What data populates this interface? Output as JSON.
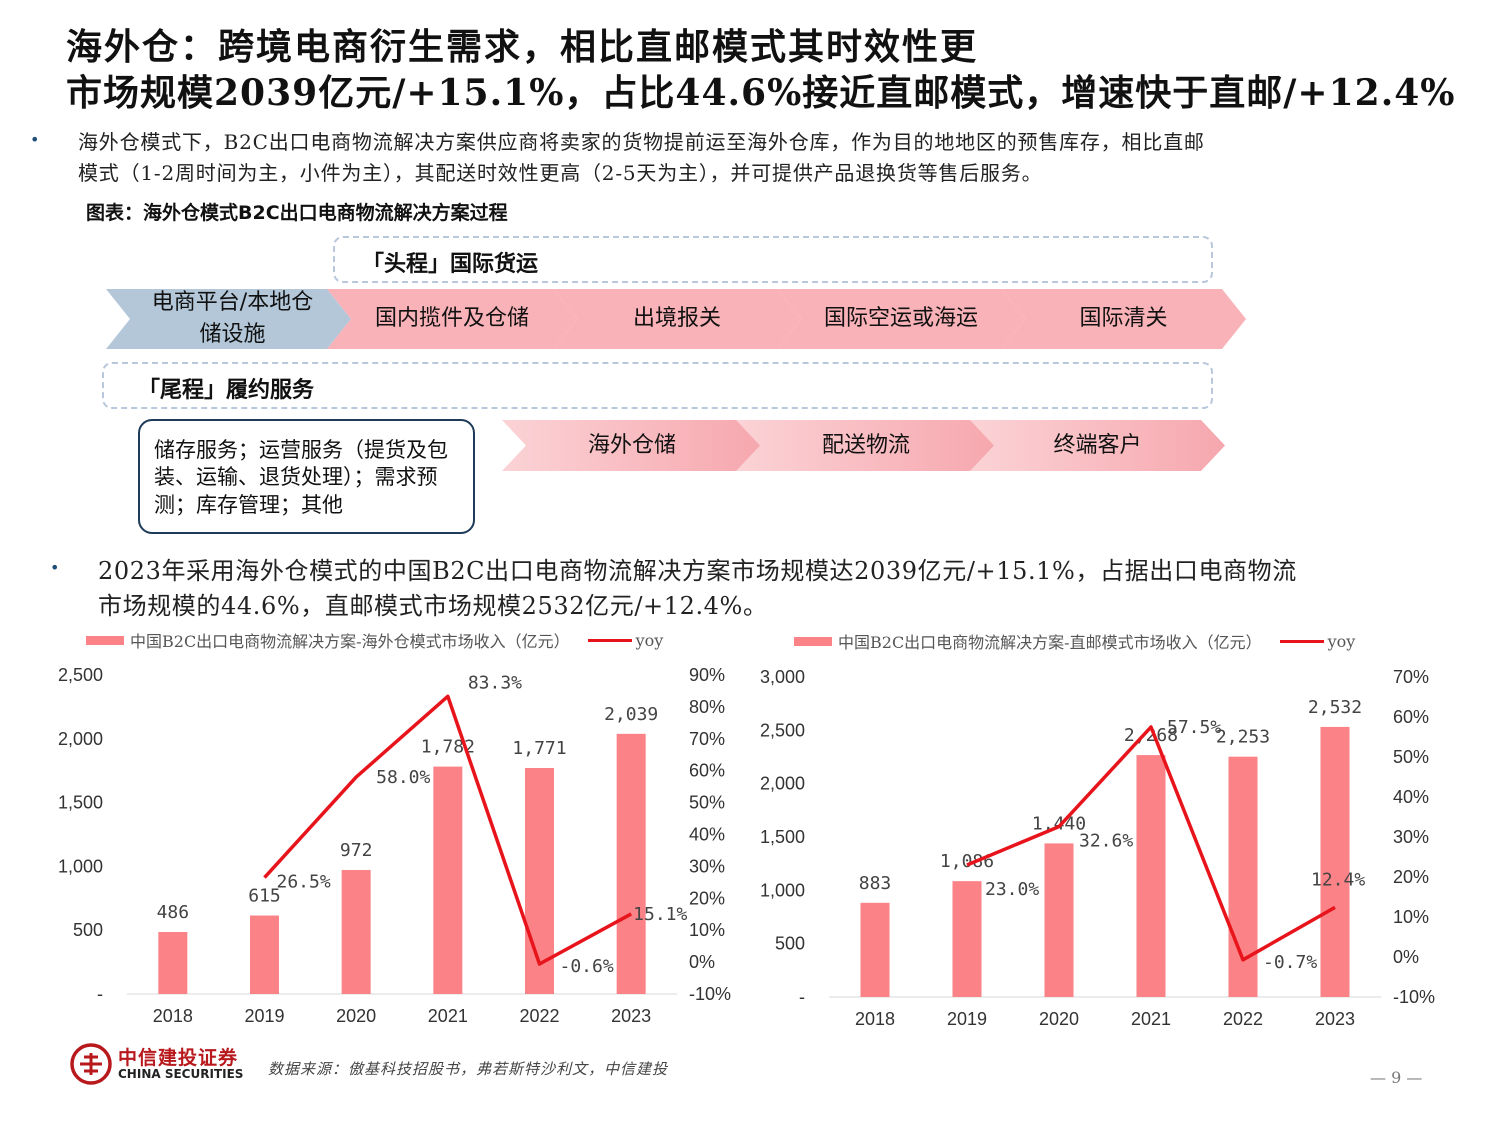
{
  "header": {
    "title_line1": "海外仓：跨境电商衍生需求，相比直邮模式其时效性更",
    "title_line2": "市场规模2039亿元/+15.1%，占比44.6%接近直邮模式，增速快于直邮/+12.4%"
  },
  "intro": {
    "line1": "海外仓模式下，B2C出口电商物流解决方案供应商将卖家的货物提前运至海外仓库，作为目的地地区的预售库存，相比直邮",
    "line2": "模式（1-2周时间为主，小件为主），其配送时效性更高（2-5天为主），并可提供产品退换货等售后服务。"
  },
  "figure": {
    "caption": "图表：海外仓模式B2C出口电商物流解决方案过程",
    "head_label": "「头程」国际货运",
    "tail_label": "「尾程」履约服务",
    "first_step_line1": "电商平台/本地仓",
    "first_step_line2": "储设施",
    "head_steps": [
      "国内揽件及仓储",
      "出境报关",
      "国际空运或海运",
      "国际清关"
    ],
    "tail_steps": [
      "海外仓储",
      "配送物流",
      "终端客户"
    ],
    "services": [
      "储存服务；运营服务（提货及包",
      "装、运输、退货处理）；需求预",
      "测；库存管理；其他"
    ]
  },
  "summary": {
    "line1": "2023年采用海外仓模式的中国B2C出口电商物流解决方案市场规模达2039亿元/+15.1%，占据出口电商物流",
    "line2": "市场规模的44.6%，直邮模式市场规模2532亿元/+12.4%。"
  },
  "colors": {
    "bar": "#fb8286",
    "line": "#e8141c",
    "brand": "#b8191c",
    "chevron_pink": "#f9b2b8",
    "chevron_blue": "#b3c7d9"
  },
  "chart_data": [
    {
      "type": "bar",
      "bar_series_name": "中国B2C出口电商物流解决方案-海外仓模式市场收入（亿元）",
      "line_series_name": "yoy",
      "categories": [
        "2018",
        "2019",
        "2020",
        "2021",
        "2022",
        "2023"
      ],
      "values": [
        486,
        615,
        972,
        1782,
        1771,
        2039
      ],
      "value_labels": [
        "486",
        "615",
        "972",
        "1,782",
        "1,771",
        "2,039"
      ],
      "yoy": [
        null,
        26.5,
        58.0,
        83.3,
        -0.6,
        15.1
      ],
      "yoy_labels": [
        "",
        "26.5%",
        "58.0%",
        "83.3%",
        "-0.6%",
        "15.1%"
      ],
      "ylim": [
        0,
        2500
      ],
      "yticks": [
        "-",
        "500",
        "1,000",
        "1,500",
        "2,000",
        "2,500"
      ],
      "y2lim": [
        -10,
        90
      ],
      "y2ticks": [
        "-10%",
        "0%",
        "10%",
        "20%",
        "30%",
        "40%",
        "50%",
        "60%",
        "70%",
        "80%",
        "90%"
      ]
    },
    {
      "type": "bar",
      "bar_series_name": "中国B2C出口电商物流解决方案-直邮模式市场收入（亿元）",
      "line_series_name": "yoy",
      "categories": [
        "2018",
        "2019",
        "2020",
        "2021",
        "2022",
        "2023"
      ],
      "values": [
        883,
        1086,
        1440,
        2268,
        2253,
        2532
      ],
      "value_labels": [
        "883",
        "1,086",
        "1,440",
        "2,268",
        "2,253",
        "2,532"
      ],
      "yoy": [
        null,
        23.0,
        32.6,
        57.5,
        -0.7,
        12.4
      ],
      "yoy_labels": [
        "",
        "23.0%",
        "32.6%",
        "57.5%",
        "-0.7%",
        "12.4%"
      ],
      "ylim": [
        0,
        3000
      ],
      "yticks": [
        "-",
        "500",
        "1,000",
        "1,500",
        "2,000",
        "2,500",
        "3,000"
      ],
      "y2lim": [
        -10,
        70
      ],
      "y2ticks": [
        "-10%",
        "0%",
        "10%",
        "20%",
        "30%",
        "40%",
        "50%",
        "60%",
        "70%"
      ]
    }
  ],
  "footer": {
    "brand_cn": "中信建投证券",
    "brand_en": "CHINA SECURITIES",
    "source": "数据来源：傲基科技招股书，弗若斯特沙利文，中信建投",
    "page": "— 9 —"
  }
}
